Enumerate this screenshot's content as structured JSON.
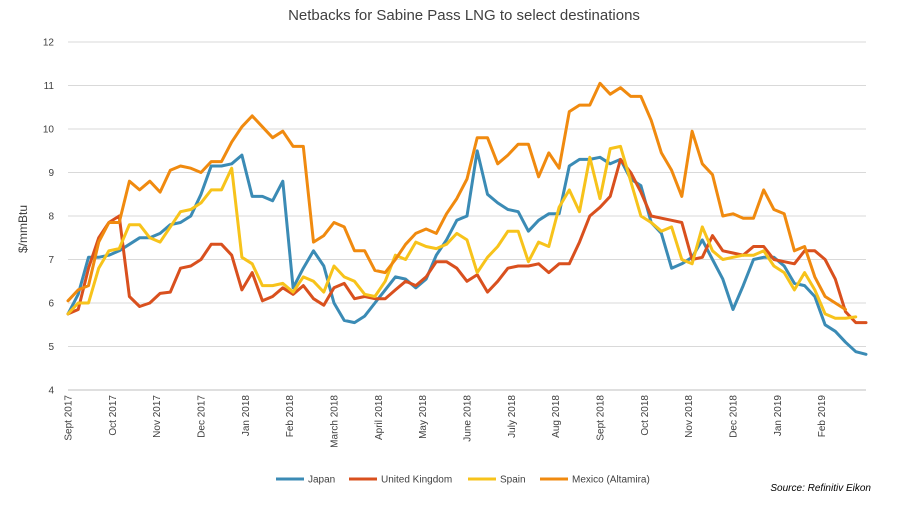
{
  "chart_data": {
    "type": "line",
    "title": "Netbacks for Sabine Pass LNG to select destinations",
    "ylabel": "$/mmBtu",
    "xlabel": "",
    "ylim": [
      4,
      12
    ],
    "yticks": [
      "4",
      "5",
      "6",
      "7",
      "8",
      "9",
      "10",
      "11",
      "12"
    ],
    "grid": true,
    "legend_position": "bottom",
    "x_tick_labels": [
      "Sept 2017",
      "Oct 2017",
      "Nov 2017",
      "Dec 2017",
      "Jan 2018",
      "Feb 2018",
      "March 2018",
      "April 2018",
      "May 2018",
      "June 2018",
      "July 2018",
      "Aug 2018",
      "Sept 2018",
      "Oct 2018",
      "Nov 2018",
      "Dec 2018",
      "Jan 2019",
      "Feb 2019"
    ],
    "x_tick_week_index": [
      0,
      4.33,
      8.67,
      13,
      17.33,
      21.67,
      26,
      30.33,
      34.67,
      39,
      43.33,
      47.67,
      52,
      56.33,
      60.67,
      65,
      69.33,
      73.67
    ],
    "source": "Source: Refinitiv Eikon",
    "series": [
      {
        "name": "Japan",
        "color": "#3b8bb5",
        "values": [
          5.75,
          6.2,
          7.05,
          7.05,
          7.1,
          7.2,
          7.35,
          7.5,
          7.5,
          7.6,
          7.8,
          7.85,
          8.0,
          8.5,
          9.15,
          9.15,
          9.2,
          9.4,
          8.45,
          8.45,
          8.35,
          8.8,
          6.35,
          6.8,
          7.2,
          6.85,
          6.0,
          5.6,
          5.55,
          5.7,
          6.0,
          6.3,
          6.6,
          6.55,
          6.35,
          6.55,
          7.1,
          7.45,
          7.9,
          8.0,
          9.5,
          8.5,
          8.3,
          8.15,
          8.1,
          7.65,
          7.9,
          8.05,
          8.05,
          9.15,
          9.3,
          9.3,
          9.35,
          9.2,
          9.3,
          8.85,
          8.7,
          7.85,
          7.6,
          6.8,
          6.9,
          7.05,
          7.45,
          7.0,
          6.55,
          5.85,
          6.4,
          7.0,
          7.05,
          7.05,
          6.85,
          6.45,
          6.4,
          6.15,
          5.5,
          5.35,
          5.1,
          4.88,
          4.82
        ]
      },
      {
        "name": "United Kingdom",
        "color": "#d9501e",
        "values": [
          5.75,
          5.85,
          6.8,
          7.5,
          7.85,
          8.0,
          6.15,
          5.92,
          6.0,
          6.22,
          6.25,
          6.8,
          6.85,
          7.0,
          7.35,
          7.35,
          7.1,
          6.3,
          6.7,
          6.05,
          6.15,
          6.35,
          6.2,
          6.4,
          6.1,
          5.95,
          6.35,
          6.45,
          6.1,
          6.15,
          6.1,
          6.1,
          6.3,
          6.5,
          6.4,
          6.6,
          6.95,
          6.95,
          6.8,
          6.5,
          6.65,
          6.25,
          6.5,
          6.8,
          6.85,
          6.85,
          6.9,
          6.7,
          6.9,
          6.9,
          7.4,
          8.0,
          8.2,
          8.45,
          9.3,
          9.0,
          8.55,
          8.0,
          7.95,
          7.9,
          7.85,
          7.0,
          7.05,
          7.55,
          7.2,
          7.15,
          7.1,
          7.3,
          7.3,
          7.0,
          6.95,
          6.9,
          7.2,
          7.2,
          7.0,
          6.55,
          5.8,
          5.55,
          5.55
        ]
      },
      {
        "name": "Spain",
        "color": "#f7c31b",
        "values": [
          5.75,
          6.0,
          6.0,
          6.8,
          7.2,
          7.25,
          7.8,
          7.8,
          7.5,
          7.4,
          7.75,
          8.1,
          8.15,
          8.3,
          8.6,
          8.6,
          9.1,
          7.05,
          6.9,
          6.4,
          6.4,
          6.45,
          6.25,
          6.6,
          6.5,
          6.25,
          6.85,
          6.6,
          6.5,
          6.2,
          6.15,
          6.5,
          7.1,
          7.0,
          7.4,
          7.3,
          7.25,
          7.35,
          7.6,
          7.45,
          6.7,
          7.05,
          7.3,
          7.65,
          7.65,
          6.95,
          7.4,
          7.3,
          8.2,
          8.6,
          8.1,
          9.35,
          8.4,
          9.55,
          9.6,
          8.8,
          8.0,
          7.85,
          7.65,
          7.75,
          7.0,
          6.9,
          7.75,
          7.2,
          7.0,
          7.05,
          7.1,
          7.1,
          7.2,
          6.85,
          6.7,
          6.3,
          6.7,
          6.3,
          5.75,
          5.65,
          5.65,
          5.68
        ]
      },
      {
        "name": "Mexico (Altamira)",
        "color": "#f08a0f",
        "values": [
          6.05,
          6.3,
          6.4,
          7.4,
          7.85,
          7.85,
          8.8,
          8.6,
          8.8,
          8.55,
          9.05,
          9.15,
          9.1,
          9.0,
          9.25,
          9.25,
          9.7,
          10.05,
          10.3,
          10.05,
          9.8,
          9.95,
          9.6,
          9.6,
          7.4,
          7.55,
          7.85,
          7.75,
          7.2,
          7.2,
          6.75,
          6.7,
          7.0,
          7.35,
          7.6,
          7.7,
          7.6,
          8.05,
          8.4,
          8.85,
          9.8,
          9.8,
          9.2,
          9.4,
          9.65,
          9.65,
          8.9,
          9.45,
          9.1,
          10.4,
          10.55,
          10.55,
          11.05,
          10.8,
          10.95,
          10.75,
          10.75,
          10.2,
          9.45,
          9.05,
          8.45,
          9.95,
          9.2,
          8.95,
          8.0,
          8.05,
          7.95,
          7.95,
          8.6,
          8.15,
          8.05,
          7.2,
          7.3,
          6.6,
          6.15,
          6.0,
          5.85
        ]
      }
    ]
  }
}
